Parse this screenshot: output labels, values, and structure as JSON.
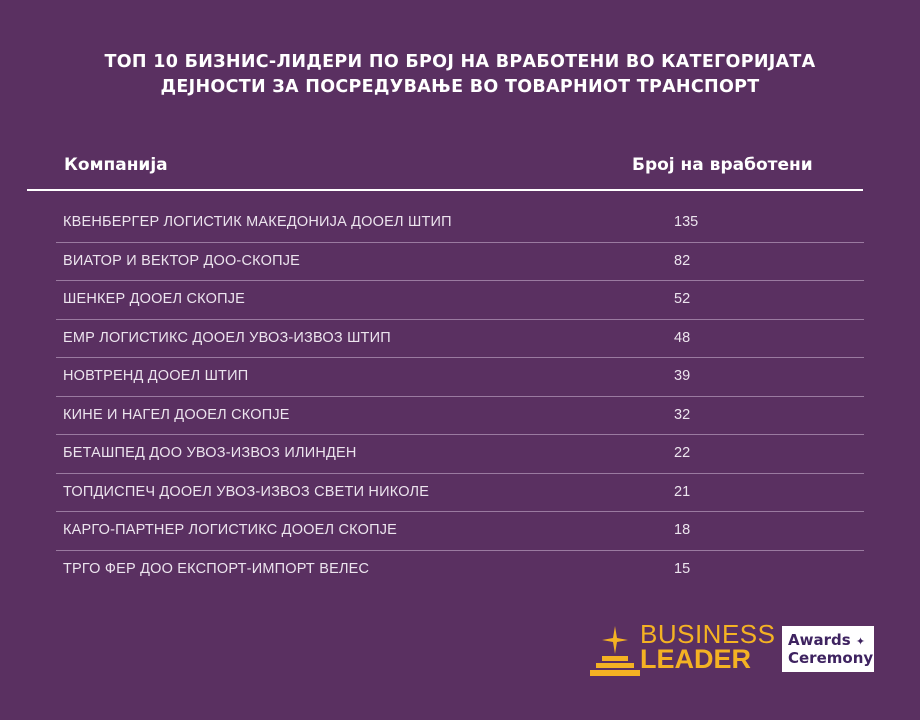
{
  "title": {
    "line1": "ТОП 10 БИЗНИС-ЛИДЕРИ ПО БРОЈ НА ВРАБОТЕНИ ВО КАТЕГОРИЈАТА",
    "line2": "ДЕЈНОСТИ ЗА ПОСРЕДУВАЊЕ ВО ТОВАРНИОТ ТРАНСПОРТ"
  },
  "table": {
    "headers": {
      "company": "Компанија",
      "count": "Број на вработени"
    },
    "rows": [
      {
        "name": "КВЕНБЕРГЕР ЛОГИСТИК МАКЕДОНИЈА ДООЕЛ ШТИП",
        "value": "135"
      },
      {
        "name": "ВИАТОР И ВЕКТОР ДОО-СКОПЈЕ",
        "value": "82"
      },
      {
        "name": "ШЕНКЕР ДООЕЛ СКОПЈЕ",
        "value": "52"
      },
      {
        "name": "ЕМР ЛОГИСТИКС ДООЕЛ УВОЗ-ИЗВОЗ ШТИП",
        "value": "48"
      },
      {
        "name": "НОВТРЕНД ДООЕЛ ШТИП",
        "value": "39"
      },
      {
        "name": "КИНЕ И НАГЕЛ ДООЕЛ СКОПЈЕ",
        "value": "32"
      },
      {
        "name": "БЕТАШПЕД ДОО УВОЗ-ИЗВОЗ ИЛИНДЕН",
        "value": "22"
      },
      {
        "name": "ТОПДИСПЕЧ ДООЕЛ УВОЗ-ИЗВОЗ СВЕТИ НИКОЛЕ",
        "value": "21"
      },
      {
        "name": "КАРГО-ПАРТНЕР ЛОГИСТИКС ДООЕЛ СКОПЈЕ",
        "value": "18"
      },
      {
        "name": "ТРГО ФЕР ДОО ЕКСПОРТ-ИМПОРТ ВЕЛЕС",
        "value": "15"
      }
    ]
  },
  "logo": {
    "line1": "BUSINESS",
    "line2": "LEADER",
    "badge_line1": "Awards",
    "badge_line2": "Ceremony",
    "gold": "#f4b223",
    "purple": "#3e2360"
  }
}
